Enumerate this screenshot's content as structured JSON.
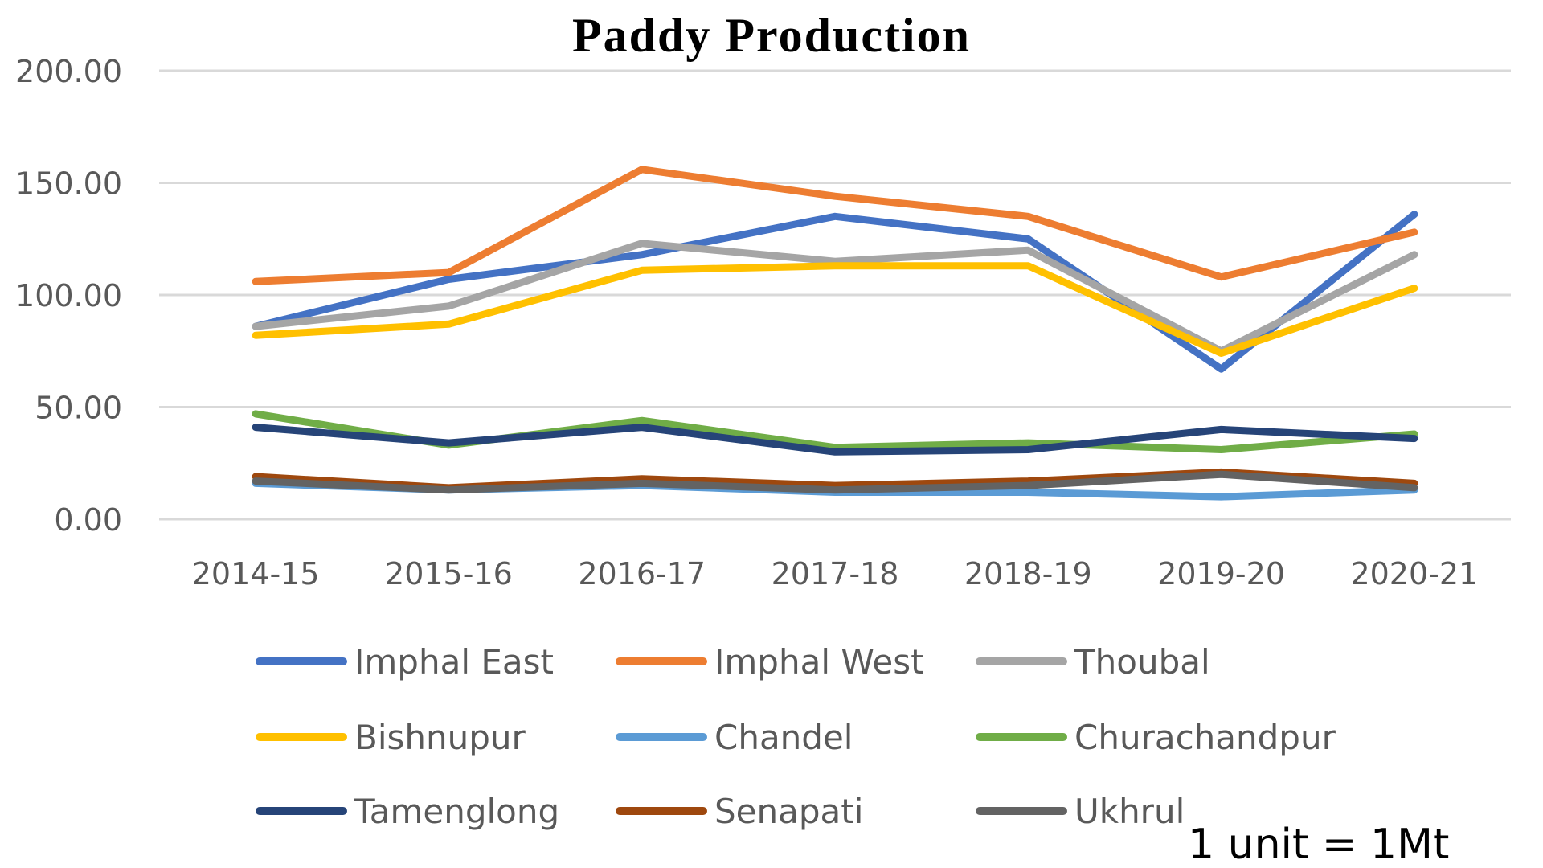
{
  "chart_data": {
    "type": "line",
    "title": "Paddy Production",
    "note": "1 unit = 1Mt",
    "categories": [
      "2014-15",
      "2015-16",
      "2016-17",
      "2017-18",
      "2018-19",
      "2019-20",
      "2020-21"
    ],
    "ylim": [
      0,
      200
    ],
    "yticks": [
      "0.00",
      "50.00",
      "100.00",
      "150.00",
      "200.00"
    ],
    "ytick_values": [
      0,
      50,
      100,
      150,
      200
    ],
    "grid": true,
    "legend_position": "bottom",
    "series": [
      {
        "name": "Imphal East",
        "color": "#4472C4",
        "values": [
          86,
          107,
          118,
          135,
          125,
          67,
          136
        ]
      },
      {
        "name": "Imphal West",
        "color": "#ED7D31",
        "values": [
          106,
          110,
          156,
          144,
          135,
          108,
          128
        ]
      },
      {
        "name": "Thoubal",
        "color": "#A5A5A5",
        "values": [
          86,
          95,
          123,
          115,
          120,
          75,
          118
        ]
      },
      {
        "name": "Bishnupur",
        "color": "#FFC000",
        "values": [
          82,
          87,
          111,
          113,
          113,
          74,
          103
        ]
      },
      {
        "name": "Chandel",
        "color": "#5B9BD5",
        "values": [
          16,
          13,
          15,
          12,
          12,
          10,
          13
        ]
      },
      {
        "name": "Churachandpur",
        "color": "#70AD47",
        "values": [
          47,
          33,
          44,
          32,
          34,
          31,
          38
        ]
      },
      {
        "name": "Tamenglong",
        "color": "#264478",
        "values": [
          41,
          34,
          41,
          30,
          31,
          40,
          36
        ]
      },
      {
        "name": "Senapati",
        "color": "#9E480E",
        "values": [
          19,
          14,
          18,
          15,
          17,
          21,
          16
        ]
      },
      {
        "name": "Ukhrul",
        "color": "#636363",
        "values": [
          17,
          13,
          16,
          13,
          15,
          20,
          14
        ]
      }
    ]
  }
}
